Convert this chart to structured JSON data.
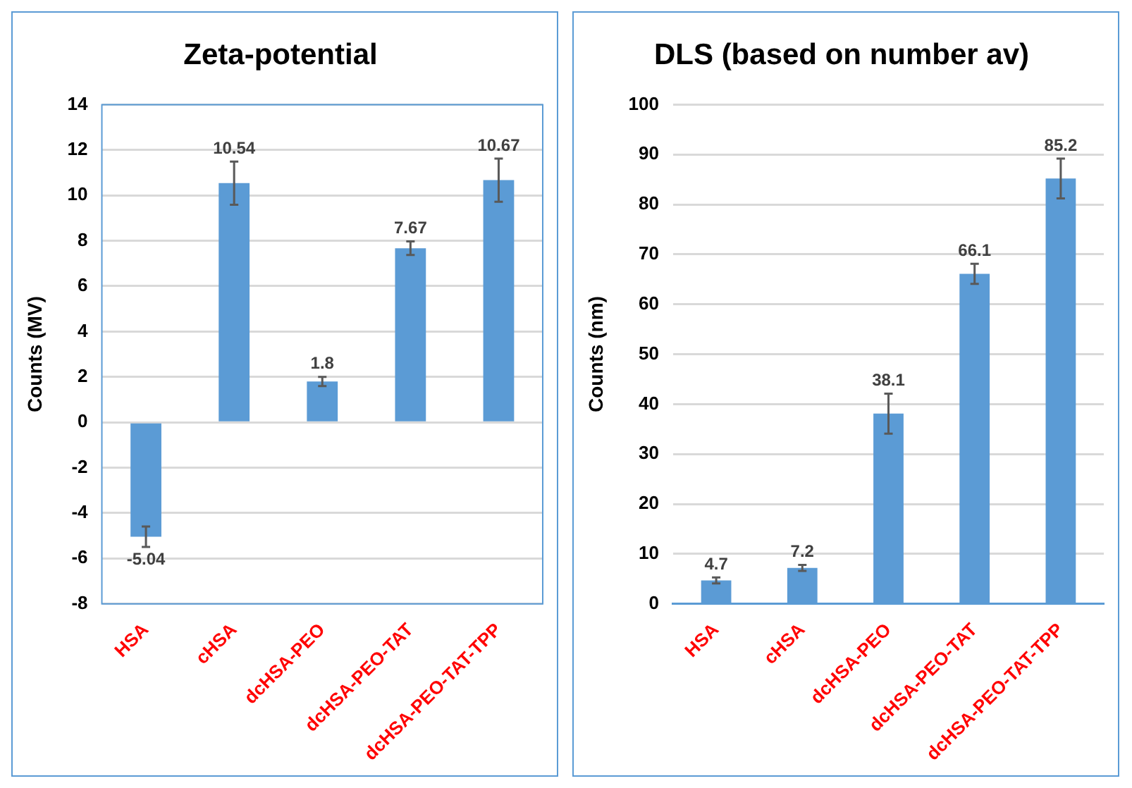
{
  "chart_data": [
    {
      "type": "bar",
      "title": "Zeta-potential",
      "ylabel": "Counts (MV)",
      "categories": [
        "HSA",
        "cHSA",
        "dcHSA-PEO",
        "dcHSA-PEO-TAT",
        "dcHSA-PEO-TAT-TPP"
      ],
      "values": [
        -5.04,
        10.54,
        1.8,
        7.67,
        10.67
      ],
      "errors": [
        0.45,
        0.95,
        0.2,
        0.3,
        0.95
      ],
      "color": "#5b9bd5",
      "ylim": [
        -8,
        14
      ],
      "yticks": [
        -8,
        -6,
        -4,
        -2,
        0,
        2,
        4,
        6,
        8,
        10,
        12,
        14
      ],
      "grid": "y",
      "data_labels": true
    },
    {
      "type": "bar",
      "title": "DLS (based on number av)",
      "ylabel": "Counts (nm)",
      "categories": [
        "HSA",
        "cHSA",
        "dcHSA-PEO",
        "dcHSA-PEO-TAT",
        "dcHSA-PEO-TAT-TPP"
      ],
      "values": [
        4.7,
        7.2,
        38.1,
        66.1,
        85.2
      ],
      "errors": [
        0.6,
        0.6,
        4,
        2,
        4
      ],
      "color": "#5b9bd5",
      "ylim": [
        0,
        100
      ],
      "yticks": [
        0,
        10,
        20,
        30,
        40,
        50,
        60,
        70,
        80,
        90,
        100
      ],
      "grid": "y",
      "data_labels": true
    }
  ]
}
